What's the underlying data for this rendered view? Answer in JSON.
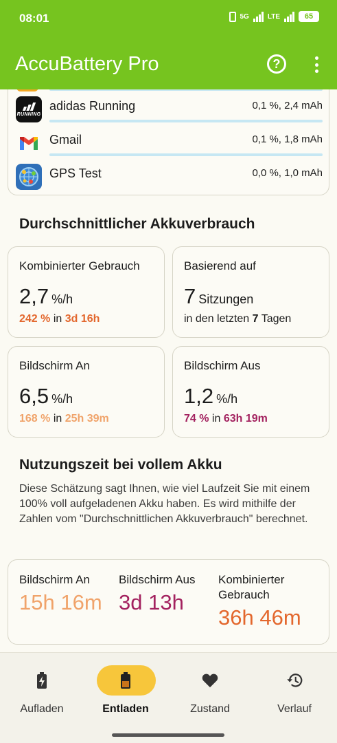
{
  "status_bar": {
    "time": "08:01",
    "network_1": "5G",
    "network_2": "LTE",
    "battery": "65"
  },
  "app_bar": {
    "title": "AccuBattery Pro",
    "help_icon": "help-circle-icon",
    "more_icon": "more-vert-icon"
  },
  "app_usage": [
    {
      "name": "adidas Running",
      "value": "0,1 %, 2,4 mAh",
      "icon": "adidas-running-icon"
    },
    {
      "name": "Gmail",
      "value": "0,1 %, 1,8 mAh",
      "icon": "gmail-icon"
    },
    {
      "name": "GPS Test",
      "value": "0,0 %, 1,0 mAh",
      "icon": "gps-test-icon"
    }
  ],
  "average": {
    "title": "Durchschnittlicher Akkuverbrauch",
    "combined": {
      "label": "Kombinierter Gebrauch",
      "value": "2,7",
      "unit": "%/h",
      "percent": "242 %",
      "in": "in",
      "duration": "3d 16h"
    },
    "based_on": {
      "label": "Basierend auf",
      "value": "7",
      "unit": "Sitzungen",
      "prefix": "in den letzten",
      "days": "7",
      "suffix": "Tagen"
    },
    "screen_on": {
      "label": "Bildschirm An",
      "value": "6,5",
      "unit": "%/h",
      "percent": "168 %",
      "in": "in",
      "duration": "25h 39m"
    },
    "screen_off": {
      "label": "Bildschirm Aus",
      "value": "1,2",
      "unit": "%/h",
      "percent": "74 %",
      "in": "in",
      "duration": "63h 19m"
    }
  },
  "full_charge": {
    "title": "Nutzungszeit bei vollem Akku",
    "description": "Diese Schätzung sagt Ihnen, wie viel Laufzeit Sie mit einem 100% voll aufgeladenen Akku haben. Es wird mithilfe der Zahlen vom \"Durchschnittlichen Akkuverbrauch\" berechnet.",
    "screen_on": {
      "label": "Bildschirm An",
      "value": "15h 16m"
    },
    "screen_off": {
      "label": "Bildschirm Aus",
      "value": "3d 13h"
    },
    "combined": {
      "label": "Kombinierter Gebrauch",
      "value": "36h 46m"
    }
  },
  "bottom_nav": {
    "items": [
      {
        "label": "Aufladen",
        "icon": "battery-charging-icon"
      },
      {
        "label": "Entladen",
        "icon": "battery-discharging-icon",
        "active": true
      },
      {
        "label": "Zustand",
        "icon": "heart-icon"
      },
      {
        "label": "Verlauf",
        "icon": "history-icon"
      }
    ]
  },
  "colors": {
    "accent_green": "#76c41f",
    "combined": "#e3672d",
    "screen_on": "#f0a36a",
    "screen_off": "#a3225f",
    "active_pill": "#f7c63b"
  }
}
